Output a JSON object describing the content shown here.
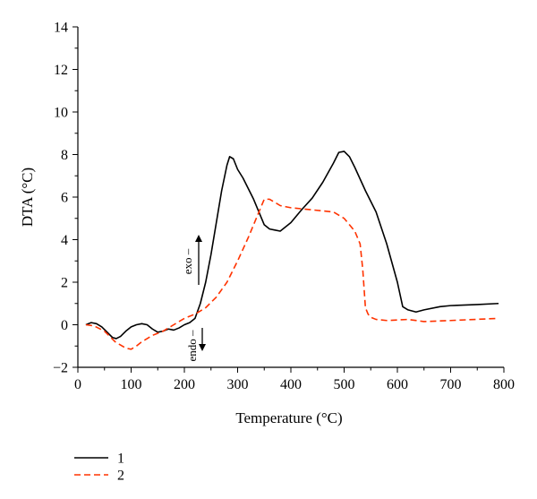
{
  "chart_data": {
    "type": "line",
    "xlabel": "Temperature (°C)",
    "ylabel": "DTA (°C)",
    "xlim": [
      0,
      800
    ],
    "ylim": [
      -2,
      14
    ],
    "xticks": [
      0,
      100,
      200,
      300,
      400,
      500,
      600,
      700,
      800
    ],
    "yticks": [
      -2,
      0,
      2,
      4,
      6,
      8,
      10,
      12,
      14
    ],
    "grid": false,
    "legend_position": "bottom-left",
    "annotations": [
      {
        "text": "exo",
        "direction": "up"
      },
      {
        "text": "endo",
        "direction": "down"
      }
    ],
    "series": [
      {
        "name": "1",
        "color": "#000000",
        "style": "solid",
        "x": [
          15,
          25,
          35,
          45,
          55,
          65,
          72,
          80,
          90,
          100,
          110,
          120,
          130,
          140,
          150,
          160,
          170,
          180,
          190,
          200,
          210,
          220,
          230,
          240,
          250,
          260,
          270,
          280,
          285,
          292,
          300,
          310,
          320,
          330,
          340,
          350,
          360,
          370,
          380,
          390,
          400,
          420,
          440,
          460,
          480,
          490,
          500,
          510,
          520,
          540,
          560,
          580,
          600,
          610,
          620,
          635,
          650,
          680,
          700,
          750,
          790
        ],
        "y": [
          0.0,
          0.1,
          0.05,
          -0.1,
          -0.35,
          -0.6,
          -0.65,
          -0.55,
          -0.3,
          -0.1,
          0.0,
          0.05,
          0.0,
          -0.2,
          -0.35,
          -0.3,
          -0.2,
          -0.25,
          -0.15,
          0.0,
          0.1,
          0.3,
          1.0,
          2.0,
          3.3,
          4.8,
          6.3,
          7.5,
          7.9,
          7.8,
          7.3,
          6.9,
          6.4,
          5.9,
          5.3,
          4.7,
          4.5,
          4.45,
          4.4,
          4.6,
          4.8,
          5.4,
          5.95,
          6.7,
          7.6,
          8.1,
          8.15,
          7.9,
          7.4,
          6.3,
          5.3,
          3.8,
          2.0,
          0.85,
          0.7,
          0.6,
          0.7,
          0.85,
          0.9,
          0.95,
          1.0
        ]
      },
      {
        "name": "2",
        "color": "#ff3300",
        "style": "dashed",
        "x": [
          15,
          30,
          50,
          70,
          90,
          100,
          110,
          120,
          140,
          160,
          180,
          200,
          220,
          240,
          260,
          280,
          300,
          320,
          340,
          350,
          360,
          380,
          400,
          420,
          440,
          460,
          480,
          500,
          510,
          520,
          530,
          535,
          540,
          545,
          550,
          560,
          580,
          620,
          650,
          700,
          790
        ],
        "y": [
          0.0,
          -0.05,
          -0.3,
          -0.8,
          -1.1,
          -1.15,
          -1.0,
          -0.8,
          -0.5,
          -0.3,
          0.0,
          0.3,
          0.5,
          0.8,
          1.3,
          2.0,
          3.0,
          4.1,
          5.3,
          5.9,
          5.9,
          5.6,
          5.5,
          5.45,
          5.4,
          5.35,
          5.3,
          5.0,
          4.7,
          4.4,
          3.8,
          2.6,
          0.8,
          0.5,
          0.35,
          0.25,
          0.2,
          0.25,
          0.15,
          0.2,
          0.3
        ]
      }
    ]
  }
}
